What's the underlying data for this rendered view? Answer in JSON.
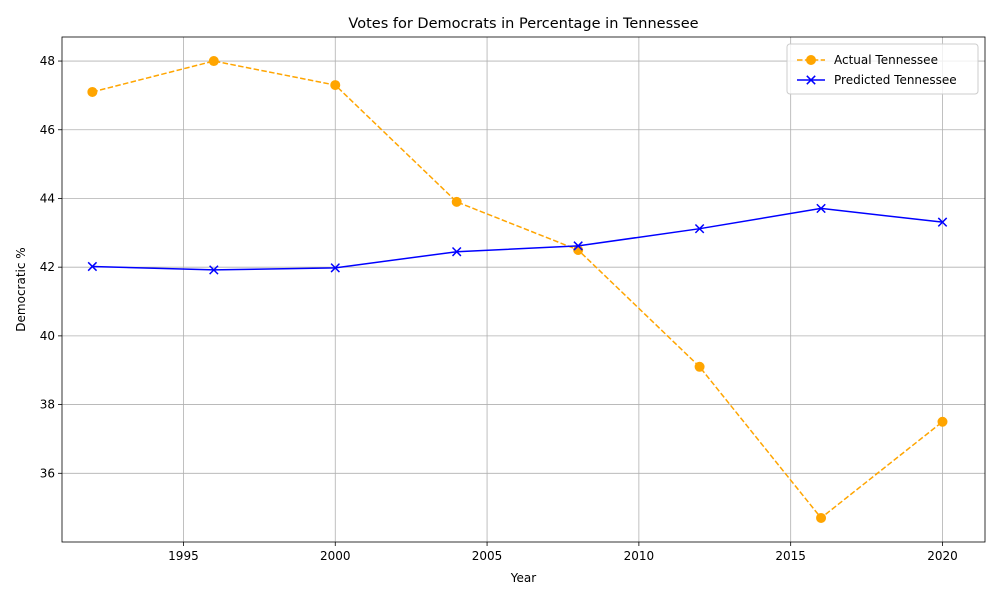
{
  "chart_data": {
    "type": "line",
    "title": "Votes for Democrats in Percentage in Tennessee",
    "xlabel": "Year",
    "ylabel": "Democratic %",
    "x": [
      1992,
      1996,
      2000,
      2004,
      2008,
      2012,
      2016,
      2020
    ],
    "xticks": [
      1995,
      2000,
      2005,
      2010,
      2015,
      2020
    ],
    "yticks": [
      36,
      38,
      40,
      42,
      44,
      46,
      48
    ],
    "xlim": [
      1991.0,
      2021.4
    ],
    "ylim": [
      34.0,
      48.7
    ],
    "grid": true,
    "legend_position": "top-right",
    "series": [
      {
        "name": "Actual Tennessee",
        "color": "#ffa500",
        "line_style": "dashed",
        "marker": "circle",
        "values": [
          47.1,
          48.0,
          47.3,
          43.9,
          42.5,
          39.1,
          34.7,
          37.5
        ]
      },
      {
        "name": "Predicted Tennessee",
        "color": "#0000ff",
        "line_style": "solid",
        "marker": "x",
        "values": [
          42.02,
          41.92,
          41.98,
          42.45,
          42.62,
          43.12,
          43.71,
          43.31
        ]
      }
    ]
  }
}
